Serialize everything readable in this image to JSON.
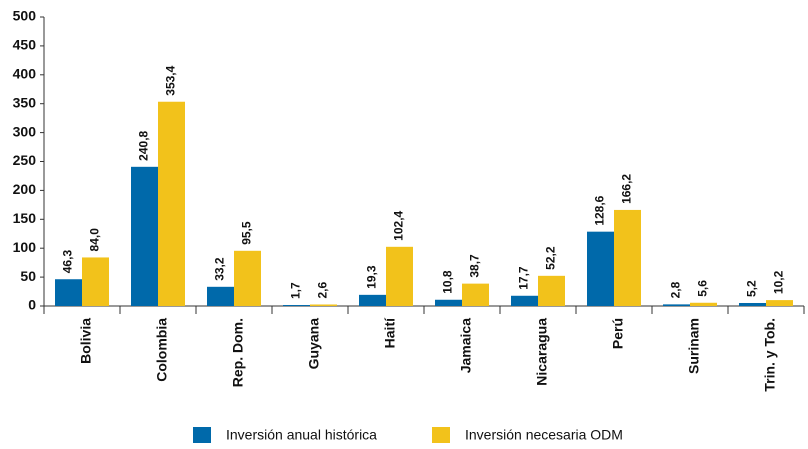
{
  "chart_data": {
    "type": "bar",
    "categories": [
      "Bolivia",
      "Colombia",
      "Rep. Dom.",
      "Guyana",
      "Haití",
      "Jamaica",
      "Nicaragua",
      "Perú",
      "Surinam",
      "Trin. y Tob."
    ],
    "series": [
      {
        "name": "Inversión anual histórica",
        "color": "#0069aa",
        "values": [
          46.3,
          240.8,
          33.2,
          1.7,
          19.3,
          10.8,
          17.7,
          128.6,
          2.8,
          5.2
        ],
        "value_labels": [
          "46,3",
          "240,8",
          "33,2",
          "1,7",
          "19,3",
          "10,8",
          "17,7",
          "128,6",
          "2,8",
          "5,2"
        ]
      },
      {
        "name": "Inversión necesaria ODM",
        "color": "#f2c21b",
        "values": [
          84.0,
          353.4,
          95.5,
          2.6,
          102.4,
          38.7,
          52.2,
          166.2,
          5.6,
          10.2
        ],
        "value_labels": [
          "84,0",
          "353,4",
          "95,5",
          "2,6",
          "102,4",
          "38,7",
          "52,2",
          "166,2",
          "5,6",
          "10,2"
        ]
      }
    ],
    "ylim": [
      0,
      500
    ],
    "yticks": [
      0,
      50,
      100,
      150,
      200,
      250,
      300,
      350,
      400,
      450,
      500
    ],
    "legend": "bottom"
  }
}
